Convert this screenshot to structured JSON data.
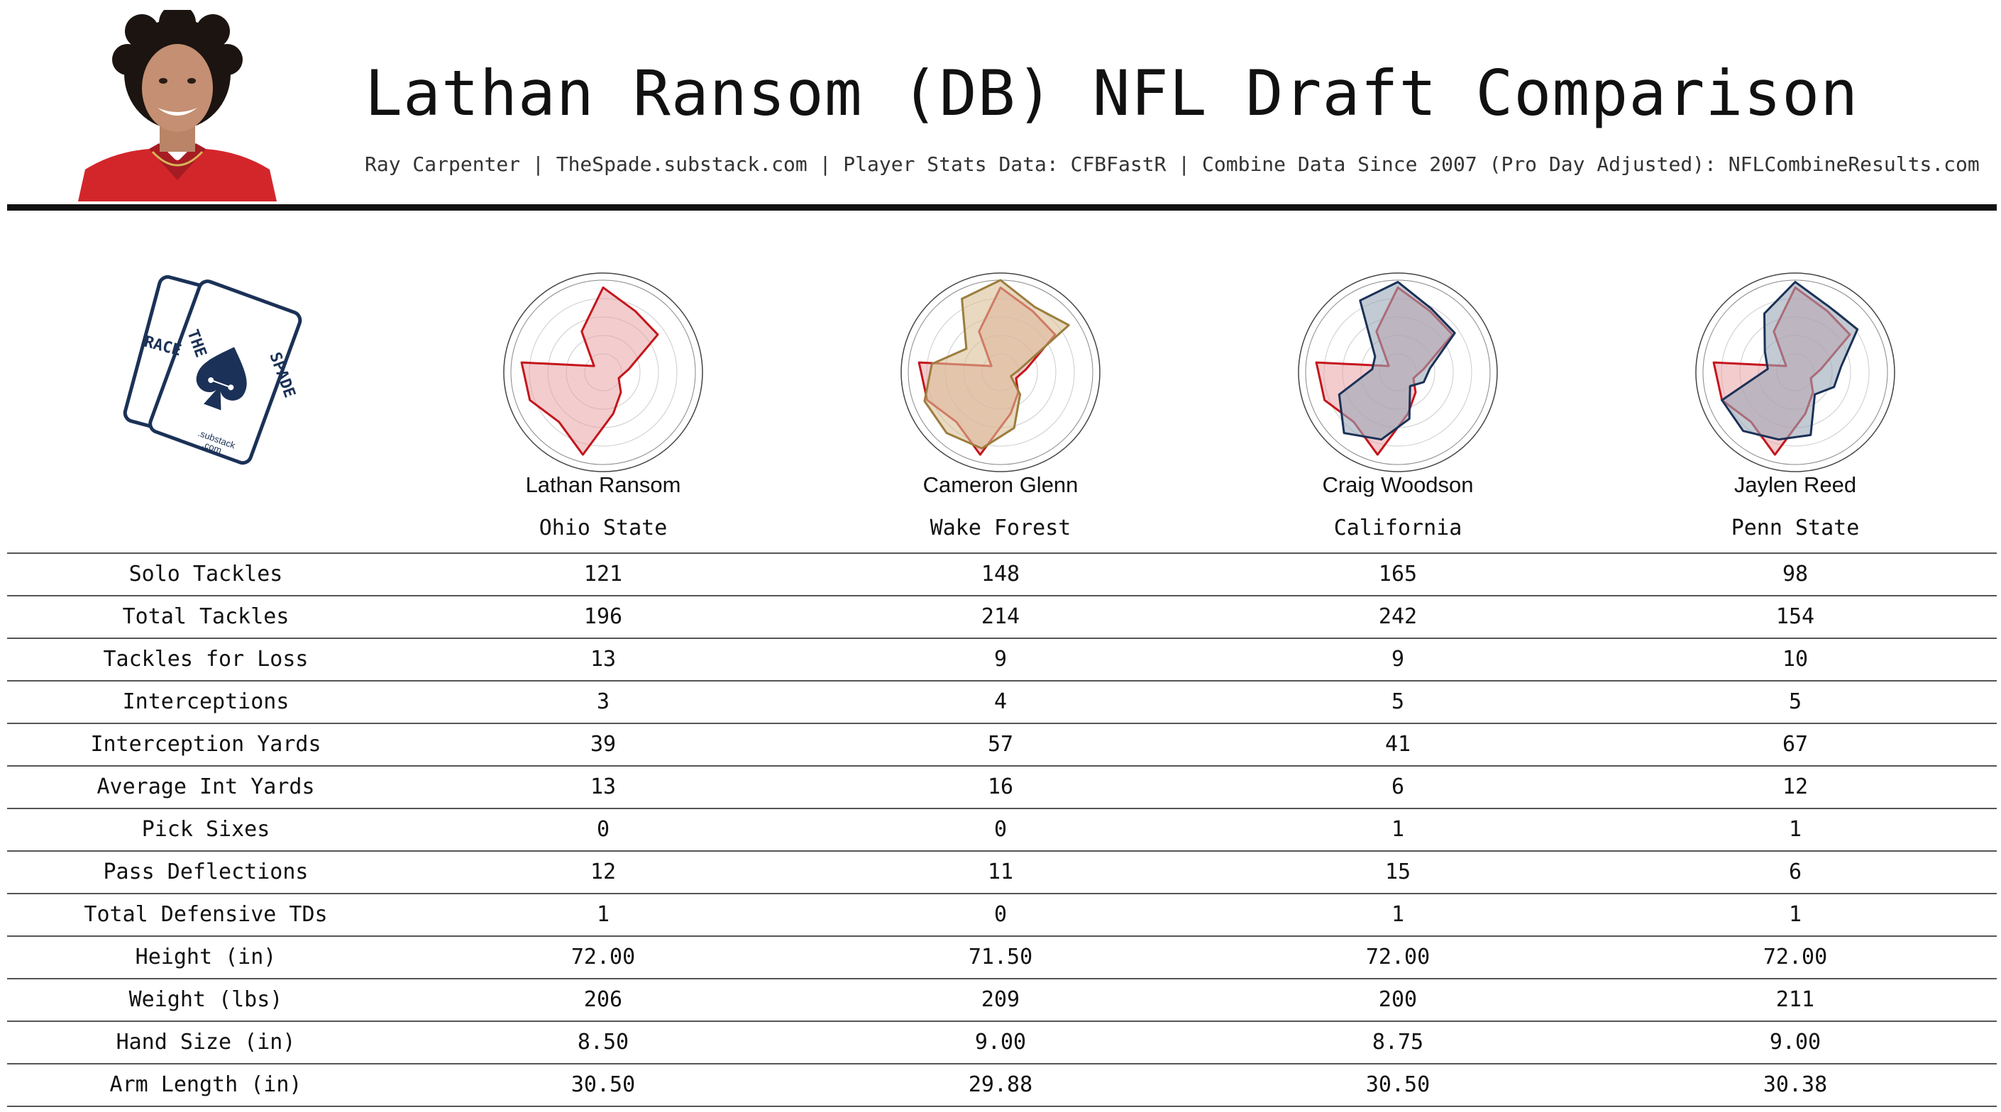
{
  "header": {
    "title": "Lathan Ransom (DB) NFL Draft Comparison",
    "subtitle": "Ray Carpenter | TheSpade.substack.com | Player Stats Data: CFBFastR | Combine Data Since 2007 (Pro Day Adjusted): NFLCombineResults.com"
  },
  "logo": {
    "back_card_letters": "RACE",
    "front_card_left": "THE",
    "front_card_right": "SPADE",
    "tag_line1": ".substack",
    "tag_line2": ".com"
  },
  "colors": {
    "featured": "#c4161c",
    "featured_fill": "#e9a3a5",
    "cameron_glenn": "#9c7d3e",
    "craig_woodson": "#1b3157",
    "jaylen_reed": "#1b3157",
    "grid": "#aaaaaa"
  },
  "players": [
    {
      "name": "Lathan Ransom",
      "school": "Ohio State"
    },
    {
      "name": "Cameron Glenn",
      "school": "Wake Forest"
    },
    {
      "name": "Craig Woodson",
      "school": "California"
    },
    {
      "name": "Jaylen Reed",
      "school": "Penn State"
    }
  ],
  "stats": [
    {
      "label": "Solo Tackles",
      "values": [
        "121",
        "148",
        "165",
        "98"
      ]
    },
    {
      "label": "Total Tackles",
      "values": [
        "196",
        "214",
        "242",
        "154"
      ]
    },
    {
      "label": "Tackles for Loss",
      "values": [
        "13",
        "9",
        "9",
        "10"
      ]
    },
    {
      "label": "Interceptions",
      "values": [
        "3",
        "4",
        "5",
        "5"
      ]
    },
    {
      "label": "Interception Yards",
      "values": [
        "39",
        "57",
        "41",
        "67"
      ]
    },
    {
      "label": "Average Int Yards",
      "values": [
        "13",
        "16",
        "6",
        "12"
      ]
    },
    {
      "label": "Pick Sixes",
      "values": [
        "0",
        "0",
        "1",
        "1"
      ]
    },
    {
      "label": "Pass Deflections",
      "values": [
        "12",
        "11",
        "15",
        "6"
      ]
    },
    {
      "label": "Total Defensive TDs",
      "values": [
        "1",
        "0",
        "1",
        "1"
      ]
    },
    {
      "label": "Height (in)",
      "values": [
        "72.00",
        "71.50",
        "72.00",
        "72.00"
      ]
    },
    {
      "label": "Weight (lbs)",
      "values": [
        "206",
        "209",
        "200",
        "211"
      ]
    },
    {
      "label": "Hand Size (in)",
      "values": [
        "8.50",
        "9.00",
        "8.75",
        "9.00"
      ]
    },
    {
      "label": "Arm Length (in)",
      "values": [
        "30.50",
        "29.88",
        "30.50",
        "30.38"
      ]
    }
  ],
  "chart_data": [
    {
      "type": "radar",
      "player": "Lathan Ransom",
      "scale": [
        0,
        1
      ],
      "rings": 5,
      "series": [
        {
          "role": "featured",
          "color": "#c4161c",
          "fill": "#e9a3a5",
          "values": [
            0.92,
            0.75,
            0.72,
            0.28,
            0.18,
            0.29,
            0.46,
            0.92,
            0.72,
            0.85,
            0.89,
            0.12,
            0.5
          ]
        }
      ]
    },
    {
      "type": "radar",
      "player": "Cameron Glenn",
      "scale": [
        0,
        1
      ],
      "rings": 5,
      "series": [
        {
          "role": "featured",
          "color": "#c4161c",
          "fill": "#e9a3a5",
          "values": [
            0.92,
            0.75,
            0.72,
            0.28,
            0.18,
            0.29,
            0.46,
            0.92,
            0.72,
            0.85,
            0.89,
            0.12,
            0.5
          ]
        },
        {
          "role": "comparison",
          "color": "#9c7d3e",
          "fill": "#d9c096",
          "values": [
            1,
            0.8,
            0.9,
            0.2,
            0.12,
            0.32,
            0.62,
            0.85,
            0.88,
            0.88,
            0.75,
            0.45,
            0.9
          ]
        }
      ]
    },
    {
      "type": "radar",
      "player": "Craig Woodson",
      "scale": [
        0,
        1
      ],
      "rings": 5,
      "series": [
        {
          "role": "featured",
          "color": "#c4161c",
          "fill": "#e9a3a5",
          "values": [
            0.92,
            0.75,
            0.72,
            0.28,
            0.18,
            0.29,
            0.46,
            0.92,
            0.72,
            0.85,
            0.89,
            0.12,
            0.5
          ]
        },
        {
          "role": "comparison",
          "color": "#1b3157",
          "fill": "#9aa6b8",
          "values": [
            0.98,
            0.78,
            0.75,
            0.35,
            0.3,
            0.2,
            0.52,
            0.75,
            0.88,
            0.68,
            0.28,
            0.3,
            0.88
          ]
        }
      ]
    },
    {
      "type": "radar",
      "player": "Jaylen Reed",
      "scale": [
        0,
        1
      ],
      "rings": 5,
      "series": [
        {
          "role": "featured",
          "color": "#c4161c",
          "fill": "#e9a3a5",
          "values": [
            0.92,
            0.75,
            0.72,
            0.28,
            0.18,
            0.29,
            0.46,
            0.92,
            0.72,
            0.85,
            0.89,
            0.12,
            0.5
          ]
        },
        {
          "role": "comparison",
          "color": "#1b3157",
          "fill": "#9aa6b8",
          "values": [
            0.98,
            0.8,
            0.82,
            0.5,
            0.45,
            0.32,
            0.7,
            0.75,
            0.85,
            0.85,
            0.3,
            0.4,
            0.72
          ]
        }
      ]
    }
  ]
}
